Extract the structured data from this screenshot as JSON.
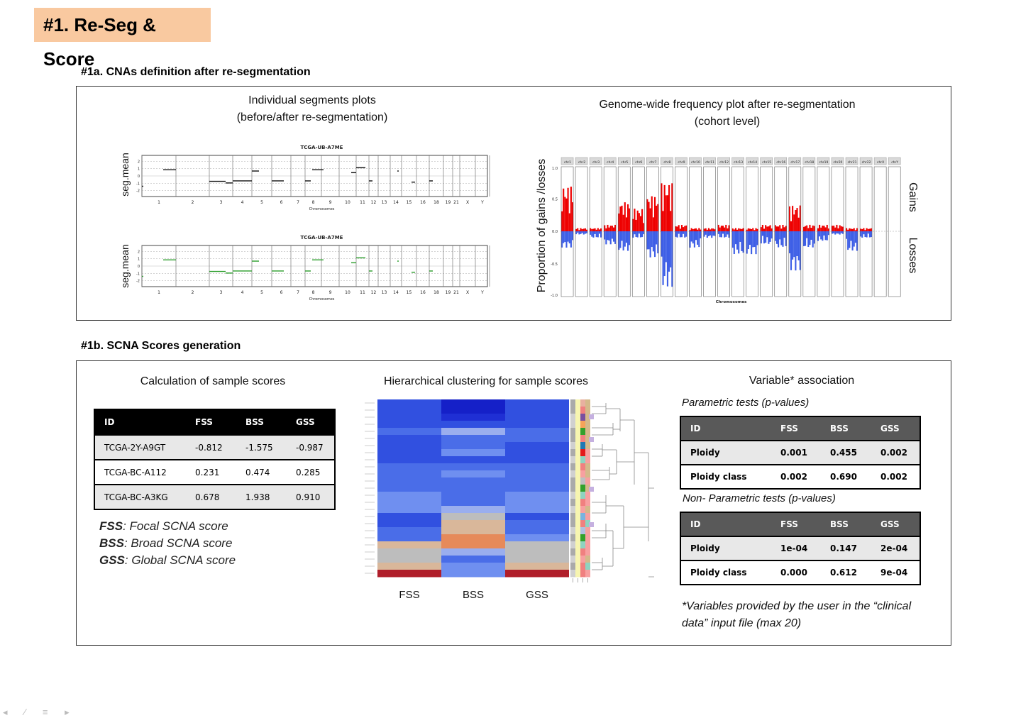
{
  "title": "#1. Re-Seg & Score",
  "section_a": {
    "title": "#1a. CNAs definition after re-segmentation",
    "seg_caption_1": "Individual segments plots",
    "seg_caption_2": "(before/after re-segmentation)",
    "seg_ylabel": "seg.mean",
    "seg_plot_title": "TCGA-UB-A7ME",
    "seg_xlabel": "Chromosomes",
    "chrom_ticks": [
      "1",
      "2",
      "3",
      "4",
      "5",
      "6",
      "7",
      "8",
      "9",
      "10",
      "11",
      "12",
      "13",
      "14",
      "15",
      "16",
      "18",
      "19",
      "21",
      "X",
      "Y"
    ],
    "seg_yticks": [
      "2",
      "1",
      "0",
      "-1",
      "-2"
    ],
    "freq_caption_1": "Genome-wide frequency plot after re-segmentation",
    "freq_caption_2": "(cohort level)",
    "freq_ylabel": "Proportion of gains /losses",
    "freq_xlabel": "Chromosomes",
    "freq_gains": "Gains",
    "freq_losses": "Losses",
    "freq_yticks": [
      "1.0",
      "0.5",
      "0.0",
      "-0.5",
      "-1.0"
    ],
    "freq_chroms": [
      "chr1",
      "chr2",
      "chr3",
      "chr4",
      "chr5",
      "chr6",
      "chr7",
      "chr8",
      "chr9",
      "chr10",
      "chr11",
      "chr12",
      "chr13",
      "chr14",
      "chr15",
      "chr16",
      "chr17",
      "chr18",
      "chr19",
      "chr20",
      "chr21",
      "chr22",
      "chrX",
      "chrY"
    ],
    "colors": {
      "gain": "#ee0000",
      "loss": "#3d5ee6",
      "after_seg": "#2a9d2a"
    }
  },
  "section_b": {
    "title": "#1b. SCNA Scores generation",
    "calc_caption": "Calculation of sample scores",
    "scores_table": {
      "headers": [
        "ID",
        "FSS",
        "BSS",
        "GSS"
      ],
      "rows": [
        [
          "TCGA-2Y-A9GT",
          "-0.812",
          "-1.575",
          "-0.987"
        ],
        [
          "TCGA-BC-A112",
          "0.231",
          "0.474",
          "0.285"
        ],
        [
          "TCGA-BC-A3KG",
          "0.678",
          "1.938",
          "0.910"
        ]
      ]
    },
    "legend": [
      {
        "abbr": "FSS",
        "text": ": Focal SCNA score"
      },
      {
        "abbr": "BSS",
        "text": ": Broad SCNA score"
      },
      {
        "abbr": "GSS",
        "text": ": Global SCNA score"
      }
    ],
    "heatmap_caption": "Hierarchical clustering for sample scores",
    "heatmap_columns": [
      "FSS",
      "BSS",
      "GSS"
    ],
    "assoc_caption": "Variable* association",
    "parametric_title": "Parametric tests (p-values)",
    "parametric_table": {
      "headers": [
        "ID",
        "FSS",
        "BSS",
        "GSS"
      ],
      "rows": [
        [
          "Ploidy",
          "0.001",
          "0.455",
          "0.002"
        ],
        [
          "Ploidy class",
          "0.002",
          "0.690",
          "0.002"
        ]
      ]
    },
    "nonparametric_title": "Non- Parametric tests (p-values)",
    "nonparametric_table": {
      "headers": [
        "ID",
        "FSS",
        "BSS",
        "GSS"
      ],
      "rows": [
        [
          "Ploidy",
          "1e-04",
          "0.147",
          "2e-04"
        ],
        [
          "Ploidy class",
          "0.000",
          "0.612",
          "9e-04"
        ]
      ]
    },
    "footnote_1": "*Variables provided by the user in the “clinical",
    "footnote_2": "data” input file (max 20)"
  }
}
